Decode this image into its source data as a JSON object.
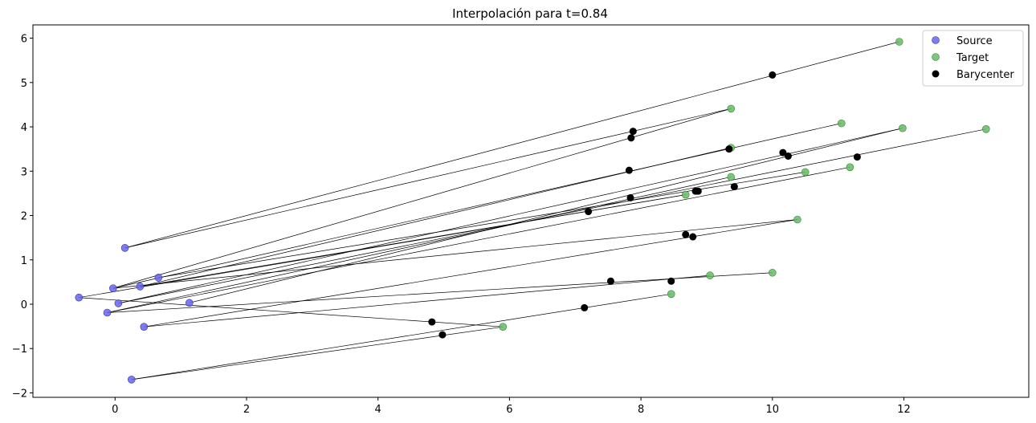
{
  "chart_data": {
    "type": "scatter",
    "title": "Interpolación para t=0.84",
    "xlabel": "",
    "ylabel": "",
    "xlim": [
      -1.25,
      13.9
    ],
    "ylim": [
      -2.1,
      6.3
    ],
    "xticks": [
      0,
      2,
      4,
      6,
      8,
      10,
      12
    ],
    "yticks": [
      -2,
      -1,
      0,
      1,
      2,
      3,
      4,
      5,
      6
    ],
    "xtick_labels": [
      "0",
      "2",
      "4",
      "6",
      "8",
      "10",
      "12"
    ],
    "ytick_labels": [
      "−2",
      "−1",
      "0",
      "1",
      "2",
      "3",
      "4",
      "5",
      "6"
    ],
    "grid": false,
    "legend_position": "top-right",
    "legend": [
      {
        "label": "Source",
        "series": "source"
      },
      {
        "label": "Target",
        "series": "target"
      },
      {
        "label": "Barycenter",
        "series": "barycenter"
      }
    ],
    "colors": {
      "source": "#6666ee",
      "source_edge": "#3333aa",
      "target": "#66bb66",
      "target_edge": "#338833",
      "barycenter": "#000000",
      "line": "#000000"
    },
    "pairs": [
      {
        "source": [
          0.15,
          1.27
        ],
        "target": [
          11.93,
          5.92
        ],
        "barycenter": [
          10.0,
          5.17
        ]
      },
      {
        "source": [
          0.15,
          1.27
        ],
        "target": [
          9.37,
          4.41
        ],
        "barycenter": [
          7.88,
          3.9
        ]
      },
      {
        "source": [
          -0.03,
          0.36
        ],
        "target": [
          9.37,
          4.41
        ],
        "barycenter": [
          7.85,
          3.75
        ]
      },
      {
        "source": [
          -0.03,
          0.36
        ],
        "target": [
          11.05,
          4.08
        ],
        "barycenter": [
          7.82,
          3.02
        ]
      },
      {
        "source": [
          0.38,
          0.4
        ],
        "target": [
          9.37,
          3.53
        ],
        "barycenter": [
          9.34,
          3.5
        ]
      },
      {
        "source": [
          0.66,
          0.6
        ],
        "target": [
          10.5,
          2.98
        ],
        "barycenter": [
          8.83,
          2.55
        ]
      },
      {
        "source": [
          -0.55,
          0.15
        ],
        "target": [
          5.9,
          -0.51
        ],
        "barycenter": [
          4.82,
          -0.4
        ]
      },
      {
        "source": [
          0.05,
          0.02
        ],
        "target": [
          11.98,
          3.97
        ],
        "barycenter": [
          10.16,
          3.42
        ]
      },
      {
        "source": [
          0.05,
          0.02
        ],
        "target": [
          13.25,
          3.95
        ],
        "barycenter": [
          11.29,
          3.32
        ]
      },
      {
        "source": [
          1.13,
          0.03
        ],
        "target": [
          11.98,
          3.97
        ],
        "barycenter": [
          10.24,
          3.34
        ]
      },
      {
        "source": [
          -0.12,
          -0.19
        ],
        "target": [
          9.37,
          2.87
        ],
        "barycenter": [
          7.84,
          2.4
        ]
      },
      {
        "source": [
          -0.12,
          -0.19
        ],
        "target": [
          11.18,
          3.09
        ],
        "barycenter": [
          9.42,
          2.65
        ]
      },
      {
        "source": [
          -0.12,
          -0.19
        ],
        "target": [
          10.0,
          0.71
        ],
        "barycenter": [
          8.46,
          0.52
        ]
      },
      {
        "source": [
          0.44,
          -0.51
        ],
        "target": [
          10.38,
          1.91
        ],
        "barycenter": [
          8.79,
          1.52
        ]
      },
      {
        "source": [
          0.44,
          -0.51
        ],
        "target": [
          9.05,
          0.65
        ],
        "barycenter": [
          7.54,
          0.52
        ]
      },
      {
        "source": [
          -0.55,
          0.15
        ],
        "target": [
          8.68,
          2.47
        ],
        "barycenter": [
          7.2,
          2.09
        ]
      },
      {
        "source": [
          0.25,
          -1.7
        ],
        "target": [
          8.46,
          0.23
        ],
        "barycenter": [
          7.14,
          -0.08
        ]
      },
      {
        "source": [
          0.25,
          -1.7
        ],
        "target": [
          5.9,
          -0.51
        ],
        "barycenter": [
          4.98,
          -0.69
        ]
      },
      {
        "source": [
          -0.03,
          0.36
        ],
        "target": [
          10.38,
          1.91
        ],
        "barycenter": [
          8.68,
          1.57
        ]
      },
      {
        "source": [
          0.38,
          0.4
        ],
        "target": [
          8.68,
          2.47
        ],
        "barycenter": [
          8.87,
          2.55
        ]
      }
    ]
  }
}
